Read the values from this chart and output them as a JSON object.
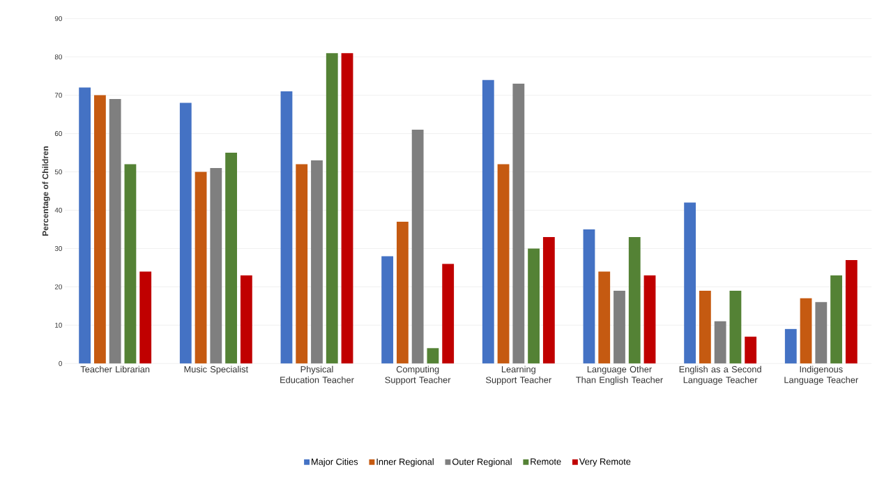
{
  "chart_data": {
    "type": "bar",
    "ylabel": "Percentage of Children",
    "categories": [
      "Teacher Librarian",
      "Music Specialist",
      "Physical Education Teacher",
      "Computing Support Teacher",
      "Learning Support Teacher",
      "Language Other Than English Teacher",
      "English as a Second Language Teacher",
      "Indigenous Language Teacher"
    ],
    "series": [
      {
        "name": "Major Cities",
        "color": "#4472c4",
        "values": [
          72,
          68,
          71,
          28,
          74,
          35,
          42,
          9
        ]
      },
      {
        "name": "Inner Regional",
        "color": "#c55a11",
        "values": [
          70,
          50,
          52,
          37,
          52,
          24,
          19,
          17
        ]
      },
      {
        "name": "Outer Regional",
        "color": "#7f7f7f",
        "values": [
          69,
          51,
          53,
          61,
          73,
          19,
          11,
          16
        ]
      },
      {
        "name": "Remote",
        "color": "#548235",
        "values": [
          52,
          55,
          81,
          4,
          30,
          33,
          19,
          23
        ]
      },
      {
        "name": "Very Remote",
        "color": "#c00000",
        "values": [
          24,
          23,
          81,
          26,
          33,
          23,
          7,
          27
        ]
      }
    ],
    "ylim": [
      0,
      90
    ],
    "yticks": [
      0,
      10,
      20,
      30,
      40,
      50,
      60,
      70,
      80,
      90
    ],
    "grid": "y",
    "legend": "bottom"
  }
}
